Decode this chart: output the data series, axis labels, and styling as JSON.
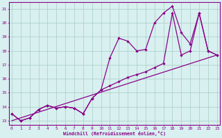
{
  "xlabel": "Windchill (Refroidissement éolien,°C)",
  "bg_color": "#d8f0ef",
  "line_color": "#880088",
  "grid_color": "#a8ccc8",
  "xlim": [
    0,
    23
  ],
  "ylim": [
    12.7,
    21.5
  ],
  "xtick_vals": [
    0,
    1,
    2,
    3,
    4,
    5,
    6,
    7,
    8,
    9,
    10,
    11,
    12,
    13,
    14,
    15,
    16,
    17,
    18,
    19,
    20,
    21,
    22,
    23
  ],
  "ytick_vals": [
    13,
    14,
    15,
    16,
    17,
    18,
    19,
    20,
    21
  ],
  "line1_x": [
    0,
    1,
    2,
    3,
    4,
    5,
    6,
    7,
    8,
    9,
    10,
    11,
    12,
    13,
    14,
    15,
    16,
    17,
    18,
    19,
    20,
    21,
    22,
    23
  ],
  "line1_y": [
    13.5,
    13.0,
    13.2,
    13.8,
    14.1,
    13.9,
    14.0,
    13.9,
    13.5,
    14.6,
    15.2,
    17.5,
    18.9,
    18.7,
    18.0,
    18.1,
    20.0,
    20.7,
    21.2,
    19.3,
    18.5,
    20.7,
    18.0,
    17.7
  ],
  "line2_x": [
    0,
    1,
    2,
    3,
    4,
    5,
    6,
    7,
    8,
    9,
    10,
    11,
    12,
    13,
    14,
    15,
    16,
    17,
    18,
    19,
    20,
    21,
    22,
    23
  ],
  "line2_y": [
    13.5,
    13.0,
    13.2,
    13.8,
    14.1,
    13.9,
    14.0,
    13.9,
    13.5,
    14.6,
    15.2,
    15.5,
    15.8,
    16.1,
    16.3,
    16.5,
    16.8,
    17.1,
    20.7,
    17.7,
    18.0,
    20.7,
    18.0,
    17.7
  ],
  "line3_x": [
    0,
    23
  ],
  "line3_y": [
    13.0,
    17.7
  ]
}
